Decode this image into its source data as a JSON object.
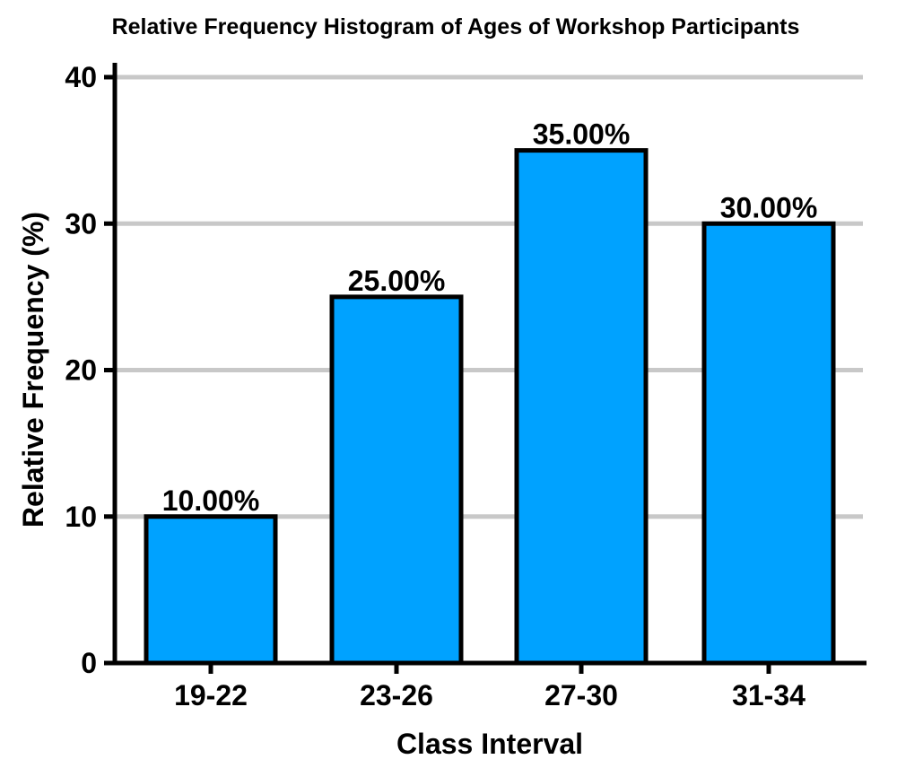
{
  "chart_data": {
    "type": "bar",
    "title": "Relative Frequency Histogram of Ages of Workshop Participants",
    "xlabel": "Class Interval",
    "ylabel": "Relative Frequency (%)",
    "categories": [
      "19-22",
      "23-26",
      "27-30",
      "31-34"
    ],
    "values": [
      10,
      25,
      35,
      30
    ],
    "data_labels": [
      "10.00%",
      "25.00%",
      "35.00%",
      "30.00%"
    ],
    "ylim": [
      0,
      40
    ],
    "yticks": [
      0,
      10,
      20,
      30,
      40
    ],
    "ytick_labels": [
      "0",
      "10",
      "20",
      "30",
      "40"
    ],
    "grid": true,
    "legend": "none",
    "colors": {
      "bar_fill": "#00A2FF",
      "bar_stroke": "#000000",
      "grid": "#C8C8C8",
      "axis": "#000000"
    }
  }
}
